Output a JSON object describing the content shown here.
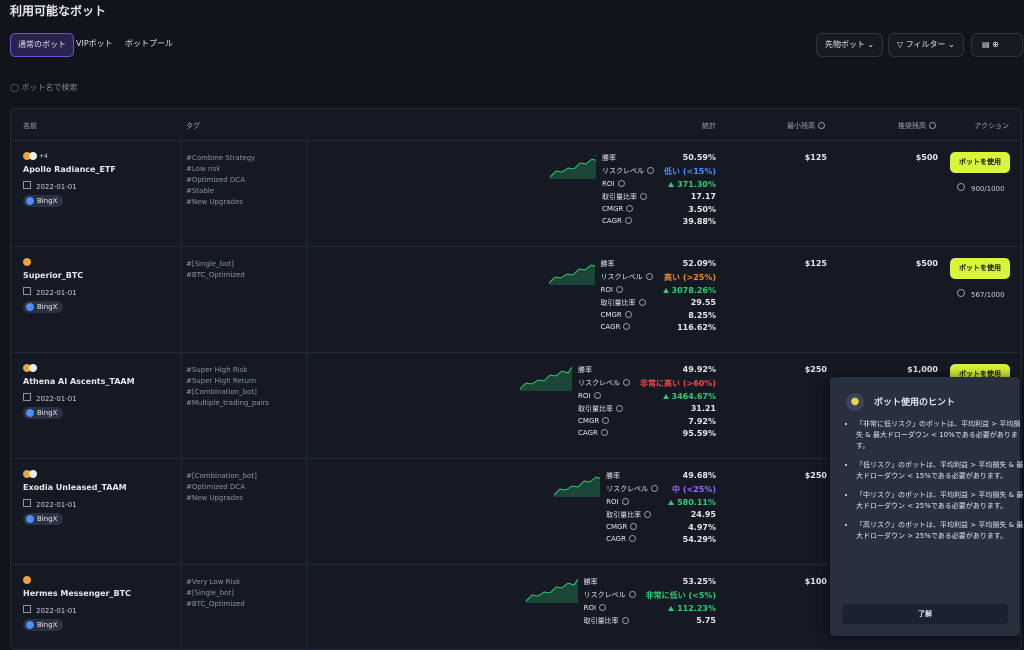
{
  "header": {
    "title": "利用可能なボット"
  },
  "tabs": [
    "通常のボット",
    "VIPボット",
    "ボットプール"
  ],
  "controls": {
    "type_dropdown": "先物ボット",
    "filter": "フィルター"
  },
  "search": {
    "placeholder": "ボット名で検索"
  },
  "table": {
    "columns": [
      "名前",
      "タグ",
      "統計",
      "最小残高",
      "推奨残高",
      "アクション"
    ],
    "stat_labels": [
      "勝率",
      "リスクレベル",
      "ROI",
      "取引量比率",
      "CMGR",
      "CAGR"
    ],
    "action_label": "ボットを使用",
    "rows": [
      {
        "icon_extra": "+4",
        "name": "Apollo Radiance_ETF",
        "date": "2022-01-01",
        "exchange": "BingX",
        "tags": [
          "#Combine Strategy",
          "#Low risk",
          "#Optimized DCA",
          "#Stable",
          "#New Upgrades"
        ],
        "stats": [
          "50.59%",
          "低い (<15%)",
          "371.30%",
          "17.17",
          "3.50%",
          "39.88%"
        ],
        "risk_color": "#4c8dff",
        "min_balance": "$125",
        "rec_balance": "$500",
        "users": "900/1000"
      },
      {
        "name": "Superior_BTC",
        "date": "2022-01-01",
        "exchange": "BingX",
        "tags": [
          "#[Single_bot]",
          "#BTC_Optimized"
        ],
        "stats": [
          "52.09%",
          "高い (>25%)",
          "3078.26%",
          "29.55",
          "8.25%",
          "116.62%"
        ],
        "risk_color": "#f08a24",
        "min_balance": "$125",
        "rec_balance": "$500",
        "users": "567/1000"
      },
      {
        "name": "Athena AI Ascents_TAAM",
        "date": "2022-01-01",
        "exchange": "BingX",
        "tags": [
          "#Super High Risk",
          "#Super High Return",
          "#[Combination_bot]",
          "#Multiple_trading_pairs"
        ],
        "stats": [
          "49.92%",
          "非常に高い (>60%)",
          "3464.67%",
          "31.21",
          "7.92%",
          "95.59%"
        ],
        "risk_color": "#f04848",
        "min_balance": "$250",
        "rec_balance": "$1,000"
      },
      {
        "name": "Exodia Unleased_TAAM",
        "date": "2022-01-01",
        "exchange": "BingX",
        "tags": [
          "#[Combination_bot]",
          "#Optimized DCA",
          "#New Upgrades"
        ],
        "stats": [
          "49.68%",
          "中 (<25%)",
          "580.11%",
          "24.95",
          "4.97%",
          "54.29%"
        ],
        "risk_color": "#9a6bff",
        "min_balance": "$250"
      },
      {
        "name": "Hermes Messenger_BTC",
        "date": "2022-01-01",
        "exchange": "BingX",
        "tags": [
          "#Very Low Risk",
          "#[Single_bot]",
          "#BTC_Optimized"
        ],
        "stats": [
          "53.25%",
          "非常に低い (<5%)",
          "112.23%",
          "5.75"
        ],
        "risk_color": "#2ecc71",
        "min_balance": "$100"
      }
    ]
  },
  "hints": {
    "title": "ボット使用のヒント",
    "items": [
      "「非常に低リスク」のボットは、平均利益 > 平均損失 & 最大ドローダウン < 10%である必要があります。",
      "「低リスク」のボットは、平均利益 > 平均損失 & 最大ドローダウン < 15%である必要があります。",
      "「中リスク」のボットは、平均利益 > 平均損失 & 最大ドローダウン < 25%である必要があります。",
      "「高リスク」のボットは、平均利益 > 平均損失 & 最大ドローダウン > 25%である必要があります。"
    ],
    "button": "了解"
  }
}
